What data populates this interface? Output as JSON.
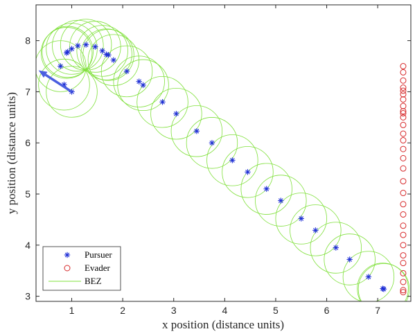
{
  "chart_data": {
    "type": "scatter",
    "title": "",
    "xlabel": "x position (distance units)",
    "ylabel": "y position (distance units)",
    "xlim": [
      0.3,
      7.65
    ],
    "ylim": [
      2.9,
      8.7
    ],
    "xticks": [
      1,
      2,
      3,
      4,
      5,
      6,
      7
    ],
    "yticks": [
      3,
      4,
      5,
      6,
      7,
      8
    ],
    "grid": false,
    "legend_position": "bottom-left",
    "bez_radius": 0.5,
    "pursuer_heading_arrow": {
      "from": [
        1.0,
        7.0
      ],
      "to": [
        0.35,
        7.42
      ],
      "color": "#4a5ee0"
    },
    "series": [
      {
        "name": "Pursuer",
        "marker": "asterisk",
        "color": "#1f2fd6",
        "x": [
          1.0,
          0.85,
          0.78,
          0.9,
          0.92,
          1.0,
          1.12,
          1.28,
          1.46,
          1.6,
          1.68,
          1.72,
          1.82,
          2.08,
          2.32,
          2.4,
          2.78,
          3.05,
          3.45,
          3.75,
          4.15,
          4.45,
          4.82,
          5.1,
          5.5,
          5.78,
          6.18,
          6.45,
          6.82,
          7.1,
          7.12
        ],
        "y": [
          7.0,
          7.14,
          7.5,
          7.76,
          7.78,
          7.84,
          7.9,
          7.92,
          7.88,
          7.8,
          7.73,
          7.72,
          7.62,
          7.4,
          7.2,
          7.13,
          6.8,
          6.57,
          6.23,
          6.0,
          5.66,
          5.43,
          5.1,
          4.87,
          4.52,
          4.29,
          3.95,
          3.72,
          3.38,
          3.15,
          3.14
        ]
      },
      {
        "name": "Evader",
        "marker": "circle",
        "color": "#d62728",
        "x": [
          7.5,
          7.5,
          7.5,
          7.5,
          7.5,
          7.5,
          7.5,
          7.5,
          7.5,
          7.5,
          7.5,
          7.5,
          7.5,
          7.5,
          7.5,
          7.5,
          7.5,
          7.5,
          7.5,
          7.5,
          7.5,
          7.5,
          7.5,
          7.5,
          7.5,
          7.5,
          7.5,
          7.5,
          7.5,
          7.5
        ],
        "y": [
          7.5,
          7.38,
          7.22,
          7.08,
          7.02,
          6.95,
          6.85,
          6.72,
          6.62,
          6.58,
          6.5,
          6.35,
          6.18,
          6.05,
          5.88,
          5.7,
          5.5,
          5.25,
          5.02,
          4.8,
          4.6,
          4.38,
          4.2,
          4.0,
          3.8,
          3.65,
          3.45,
          3.28,
          3.12,
          3.08
        ]
      },
      {
        "name": "BEZ",
        "marker": "line",
        "color": "#7fe03a"
      }
    ]
  }
}
